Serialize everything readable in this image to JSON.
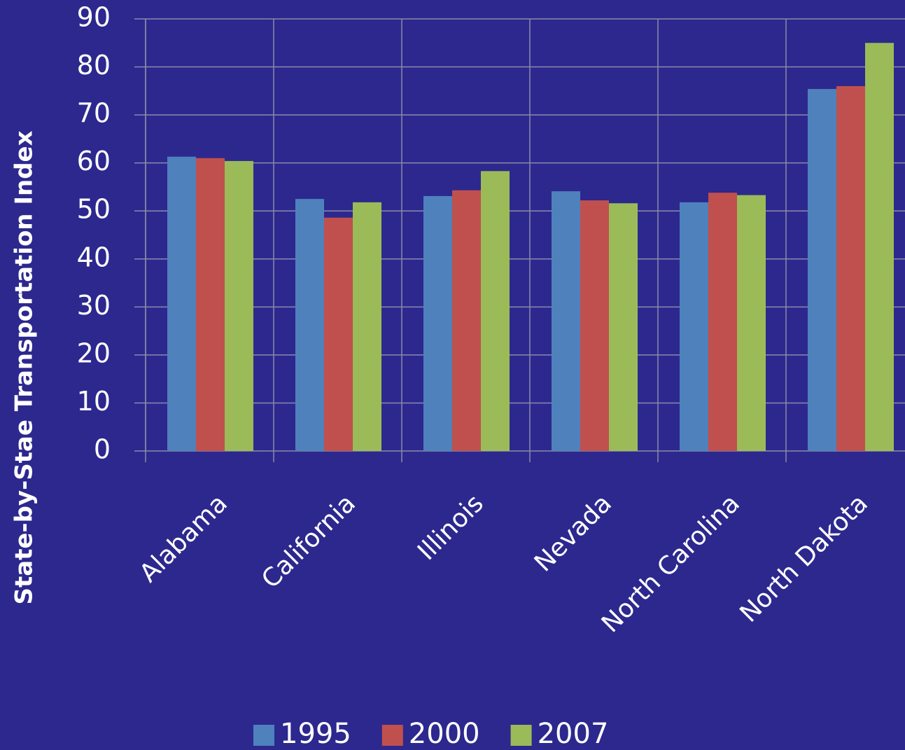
{
  "chart_data": {
    "type": "bar",
    "y_axis_label": "State-by-Stae Transportation Index",
    "categories": [
      "Alabama",
      "California",
      "Illinois",
      "Nevada",
      "North Carolina",
      "North Dakota"
    ],
    "series": [
      {
        "name": "1995",
        "color": "#4f81bd",
        "values": [
          61.3,
          52.5,
          53.1,
          54.1,
          51.8,
          75.4
        ]
      },
      {
        "name": "2000",
        "color": "#c0504d",
        "values": [
          61.0,
          48.6,
          54.3,
          52.2,
          53.8,
          76.0
        ]
      },
      {
        "name": "2007",
        "color": "#9bbb59",
        "values": [
          60.4,
          51.8,
          58.3,
          51.6,
          53.3,
          85.0
        ]
      }
    ],
    "ylim": [
      0,
      90
    ],
    "yticks": [
      0,
      10,
      20,
      30,
      40,
      50,
      60,
      70,
      80,
      90
    ],
    "grid": true,
    "legend": "bottom"
  }
}
